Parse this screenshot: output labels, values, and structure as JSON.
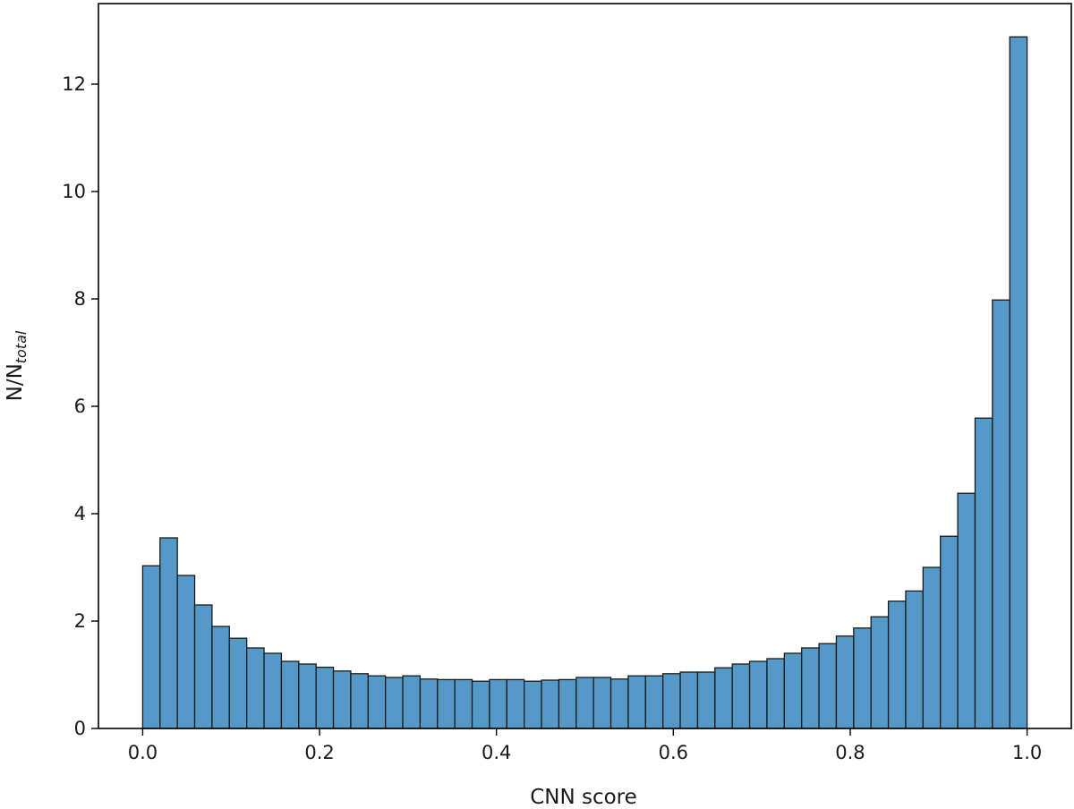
{
  "chart_data": {
    "type": "bar",
    "title": "",
    "xlabel": "CNN score",
    "ylabel": {
      "main": "N/N",
      "subscript": "total"
    },
    "xlim": [
      -0.05,
      1.05
    ],
    "ylim": [
      0,
      13.5
    ],
    "grid": false,
    "bar_color": "#5599c8",
    "edge_color": "#1a1a1a",
    "x_ticks": [
      {
        "value": 0.0,
        "label": "0.0"
      },
      {
        "value": 0.2,
        "label": "0.2"
      },
      {
        "value": 0.4,
        "label": "0.4"
      },
      {
        "value": 0.6,
        "label": "0.6"
      },
      {
        "value": 0.8,
        "label": "0.8"
      },
      {
        "value": 1.0,
        "label": "1.0"
      }
    ],
    "y_ticks": [
      {
        "value": 0,
        "label": "0"
      },
      {
        "value": 2,
        "label": "2"
      },
      {
        "value": 4,
        "label": "4"
      },
      {
        "value": 6,
        "label": "6"
      },
      {
        "value": 8,
        "label": "8"
      },
      {
        "value": 10,
        "label": "10"
      },
      {
        "value": 12,
        "label": "12"
      }
    ],
    "bin_edges_range": [
      0.0,
      1.0
    ],
    "values": [
      3.03,
      3.55,
      2.85,
      2.3,
      1.9,
      1.68,
      1.5,
      1.4,
      1.25,
      1.2,
      1.14,
      1.07,
      1.02,
      0.98,
      0.95,
      0.98,
      0.92,
      0.91,
      0.91,
      0.88,
      0.91,
      0.91,
      0.88,
      0.9,
      0.91,
      0.95,
      0.95,
      0.92,
      0.98,
      0.98,
      1.02,
      1.05,
      1.05,
      1.13,
      1.2,
      1.25,
      1.3,
      1.4,
      1.5,
      1.58,
      1.72,
      1.87,
      2.08,
      2.37,
      2.56,
      3.0,
      3.58,
      4.38,
      5.78,
      7.98,
      12.88
    ]
  }
}
